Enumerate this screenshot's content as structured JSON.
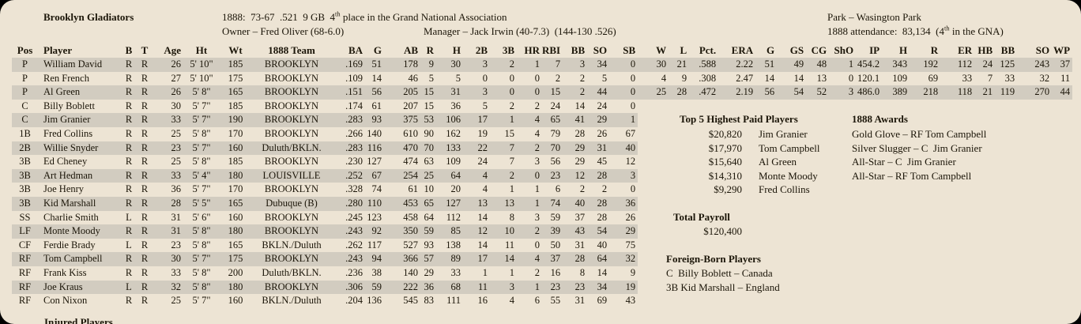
{
  "header": {
    "team_name": "Brooklyn Gladiators",
    "season_line": {
      "pre": "1888:  73-67  .521  9 GB  4",
      "sup": "th",
      "post": " place in the Grand National Association"
    },
    "park_label": "Park – Wasington Park",
    "owner_line": "Owner – Fred Oliver (68-6.0)",
    "manager_line": "Manager – Jack Irwin (40-7.3)  (144-130 .526)",
    "attendance_line": {
      "pre": "1888 attendance:  83,134  (4",
      "sup": "th",
      "post": " in the GNA)"
    }
  },
  "table": {
    "columns": [
      "Pos",
      "Player",
      "B",
      "T",
      "Age",
      "Ht",
      "Wt",
      "1888 Team",
      "BA",
      "G",
      "AB",
      "R",
      "H",
      "2B",
      "3B",
      "HR",
      "RBI",
      "BB",
      "SO",
      "SB",
      "W",
      "L",
      "Pct.",
      "ERA",
      "G",
      "GS",
      "CG",
      "ShO",
      "IP",
      "H",
      "R",
      "ER",
      "HB",
      "BB",
      "SO",
      "WP"
    ],
    "rows": [
      [
        "P",
        "William David",
        "R",
        "R",
        "26",
        "5' 10\"",
        "185",
        "BROOKLYN",
        ".169",
        "51",
        "178",
        "9",
        "30",
        "3",
        "2",
        "1",
        "7",
        "3",
        "34",
        "0",
        "30",
        "21",
        ".588",
        "2.22",
        "51",
        "49",
        "48",
        "1",
        "454.2",
        "343",
        "192",
        "112",
        "24",
        "125",
        "243",
        "37"
      ],
      [
        "P",
        "Ren French",
        "R",
        "R",
        "27",
        "5' 10\"",
        "175",
        "BROOKLYN",
        ".109",
        "14",
        "46",
        "5",
        "5",
        "0",
        "0",
        "0",
        "2",
        "2",
        "5",
        "0",
        "4",
        "9",
        ".308",
        "2.47",
        "14",
        "14",
        "13",
        "0",
        "120.1",
        "109",
        "69",
        "33",
        "7",
        "33",
        "32",
        "11"
      ],
      [
        "P",
        "Al Green",
        "R",
        "R",
        "26",
        "5' 8\"",
        "165",
        "BROOKLYN",
        ".151",
        "56",
        "205",
        "15",
        "31",
        "3",
        "0",
        "0",
        "15",
        "2",
        "44",
        "0",
        "25",
        "28",
        ".472",
        "2.19",
        "56",
        "54",
        "52",
        "3",
        "486.0",
        "389",
        "218",
        "118",
        "21",
        "119",
        "270",
        "44"
      ],
      [
        "C",
        "Billy Boblett",
        "R",
        "R",
        "30",
        "5' 7\"",
        "185",
        "BROOKLYN",
        ".174",
        "61",
        "207",
        "15",
        "36",
        "5",
        "2",
        "2",
        "24",
        "14",
        "24",
        "0",
        "",
        "",
        "",
        "",
        "",
        "",
        "",
        "",
        "",
        "",
        "",
        "",
        "",
        "",
        "",
        ""
      ],
      [
        "C",
        "Jim Granier",
        "R",
        "R",
        "33",
        "5' 7\"",
        "190",
        "BROOKLYN",
        ".283",
        "93",
        "375",
        "53",
        "106",
        "17",
        "1",
        "4",
        "65",
        "41",
        "29",
        "1",
        "",
        "",
        "",
        "",
        "",
        "",
        "",
        "",
        "",
        "",
        "",
        "",
        "",
        "",
        "",
        ""
      ],
      [
        "1B",
        "Fred Collins",
        "R",
        "R",
        "25",
        "5' 8\"",
        "170",
        "BROOKLYN",
        ".266",
        "140",
        "610",
        "90",
        "162",
        "19",
        "15",
        "4",
        "79",
        "28",
        "26",
        "67",
        "",
        "",
        "",
        "",
        "",
        "",
        "",
        "",
        "",
        "",
        "",
        "",
        "",
        "",
        "",
        ""
      ],
      [
        "2B",
        "Willie Snyder",
        "R",
        "R",
        "23",
        "5' 7\"",
        "160",
        "Duluth/BKLN.",
        ".283",
        "116",
        "470",
        "70",
        "133",
        "22",
        "7",
        "2",
        "70",
        "29",
        "31",
        "40",
        "",
        "",
        "",
        "",
        "",
        "",
        "",
        "",
        "",
        "",
        "",
        "",
        "",
        "",
        "",
        ""
      ],
      [
        "3B",
        "Ed Cheney",
        "R",
        "R",
        "25",
        "5' 8\"",
        "185",
        "BROOKLYN",
        ".230",
        "127",
        "474",
        "63",
        "109",
        "24",
        "7",
        "3",
        "56",
        "29",
        "45",
        "12",
        "",
        "",
        "",
        "",
        "",
        "",
        "",
        "",
        "",
        "",
        "",
        "",
        "",
        "",
        "",
        ""
      ],
      [
        "3B",
        "Art Hedman",
        "R",
        "R",
        "33",
        "5' 4\"",
        "180",
        "LOUISVILLE",
        ".252",
        "67",
        "254",
        "25",
        "64",
        "4",
        "2",
        "0",
        "23",
        "12",
        "28",
        "3",
        "",
        "",
        "",
        "",
        "",
        "",
        "",
        "",
        "",
        "",
        "",
        "",
        "",
        "",
        "",
        ""
      ],
      [
        "3B",
        "Joe Henry",
        "R",
        "R",
        "36",
        "5' 7\"",
        "170",
        "BROOKLYN",
        ".328",
        "74",
        "61",
        "10",
        "20",
        "4",
        "1",
        "1",
        "6",
        "2",
        "2",
        "0",
        "",
        "",
        "",
        "",
        "",
        "",
        "",
        "",
        "",
        "",
        "",
        "",
        "",
        "",
        "",
        ""
      ],
      [
        "3B",
        "Kid Marshall",
        "R",
        "R",
        "28",
        "5' 5\"",
        "165",
        "Dubuque (B)",
        ".280",
        "110",
        "453",
        "65",
        "127",
        "13",
        "13",
        "1",
        "74",
        "40",
        "28",
        "36",
        "",
        "",
        "",
        "",
        "",
        "",
        "",
        "",
        "",
        "",
        "",
        "",
        "",
        "",
        "",
        ""
      ],
      [
        "SS",
        "Charlie Smith",
        "L",
        "R",
        "31",
        "5' 6\"",
        "160",
        "BROOKLYN",
        ".245",
        "123",
        "458",
        "64",
        "112",
        "14",
        "8",
        "3",
        "59",
        "37",
        "28",
        "26",
        "",
        "",
        "",
        "",
        "",
        "",
        "",
        "",
        "",
        "",
        "",
        "",
        "",
        "",
        "",
        ""
      ],
      [
        "LF",
        "Monte Moody",
        "R",
        "R",
        "31",
        "5' 8\"",
        "180",
        "BROOKLYN",
        ".243",
        "92",
        "350",
        "59",
        "85",
        "12",
        "10",
        "2",
        "39",
        "43",
        "54",
        "29",
        "",
        "",
        "",
        "",
        "",
        "",
        "",
        "",
        "",
        "",
        "",
        "",
        "",
        "",
        "",
        ""
      ],
      [
        "CF",
        "Ferdie Brady",
        "L",
        "R",
        "23",
        "5' 8\"",
        "165",
        "BKLN./Duluth",
        ".262",
        "117",
        "527",
        "93",
        "138",
        "14",
        "11",
        "0",
        "50",
        "31",
        "40",
        "75",
        "",
        "",
        "",
        "",
        "",
        "",
        "",
        "",
        "",
        "",
        "",
        "",
        "",
        "",
        "",
        ""
      ],
      [
        "RF",
        "Tom Campbell",
        "R",
        "R",
        "30",
        "5' 7\"",
        "175",
        "BROOKLYN",
        ".243",
        "94",
        "366",
        "57",
        "89",
        "17",
        "14",
        "4",
        "37",
        "28",
        "64",
        "32",
        "",
        "",
        "",
        "",
        "",
        "",
        "",
        "",
        "",
        "",
        "",
        "",
        "",
        "",
        "",
        ""
      ],
      [
        "RF",
        "Frank Kiss",
        "R",
        "R",
        "33",
        "5' 8\"",
        "200",
        "Duluth/BKLN.",
        ".236",
        "38",
        "140",
        "29",
        "33",
        "1",
        "1",
        "2",
        "16",
        "8",
        "14",
        "9",
        "",
        "",
        "",
        "",
        "",
        "",
        "",
        "",
        "",
        "",
        "",
        "",
        "",
        "",
        "",
        ""
      ],
      [
        "RF",
        "Joe Kraus",
        "L",
        "R",
        "32",
        "5' 8\"",
        "180",
        "BROOKLYN",
        ".306",
        "59",
        "222",
        "36",
        "68",
        "11",
        "3",
        "1",
        "23",
        "23",
        "34",
        "19",
        "",
        "",
        "",
        "",
        "",
        "",
        "",
        "",
        "",
        "",
        "",
        "",
        "",
        "",
        "",
        ""
      ],
      [
        "RF",
        "Con Nixon",
        "R",
        "R",
        "25",
        "5' 7\"",
        "160",
        "BKLN./Duluth",
        ".204",
        "136",
        "545",
        "83",
        "111",
        "16",
        "4",
        "6",
        "55",
        "31",
        "69",
        "43",
        "",
        "",
        "",
        "",
        "",
        "",
        "",
        "",
        "",
        "",
        "",
        "",
        "",
        "",
        "",
        ""
      ]
    ],
    "pitcher_row_count": 3
  },
  "top_paid": {
    "heading": "Top 5 Highest Paid Players",
    "entries": [
      {
        "salary": "$20,820",
        "name": "Jim Granier"
      },
      {
        "salary": "$17,970",
        "name": "Tom Campbell"
      },
      {
        "salary": "$15,640",
        "name": "Al Green"
      },
      {
        "salary": "$14,310",
        "name": "Monte Moody"
      },
      {
        "salary": "$9,290",
        "name": "Fred Collins"
      }
    ]
  },
  "awards": {
    "heading": "1888 Awards",
    "entries": [
      "Gold Glove – RF Tom Campbell",
      "Silver Slugger – C  Jim Granier",
      "All-Star – C  Jim Granier",
      "All-Star – RF Tom Campbell"
    ]
  },
  "payroll": {
    "heading": "Total Payroll",
    "value": "$120,400"
  },
  "foreign_born": {
    "heading": "Foreign-Born Players",
    "entries": [
      "C  Billy Boblett – Canada",
      "3B Kid Marshall – England"
    ]
  },
  "footer": {
    "injured_heading": "Injured Players"
  },
  "colors": {
    "panel_bg": "#ede4d4",
    "row_stripe": "#d2ccc0",
    "text": "#1b1508",
    "surround": "#000000"
  }
}
